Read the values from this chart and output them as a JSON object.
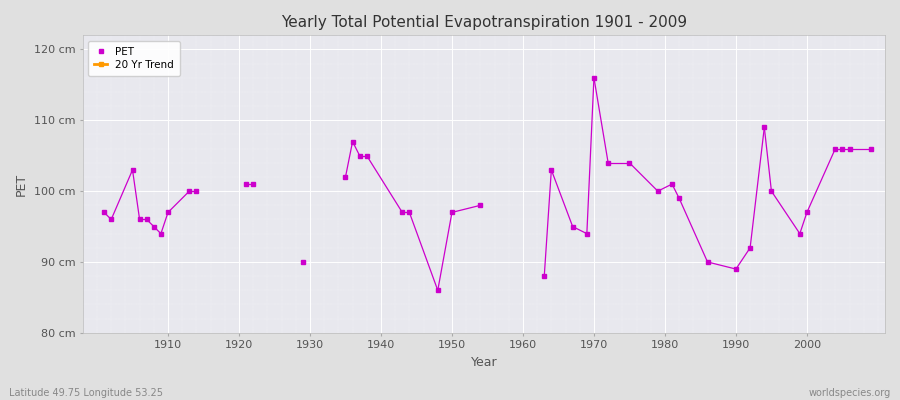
{
  "title": "Yearly Total Potential Evapotranspiration 1901 – 2009",
  "title_text": "Yearly Total Potential Evapotranspiration 1901 - 2009",
  "xlabel": "Year",
  "ylabel": "PET",
  "bottom_left_label": "Latitude 49.75 Longitude 53.25",
  "bottom_right_label": "worldspecies.org",
  "ylim": [
    80,
    122
  ],
  "xlim": [
    1898,
    2011
  ],
  "yticks": [
    80,
    90,
    100,
    110,
    120
  ],
  "ytick_labels": [
    "80 cm",
    "90 cm",
    "100 cm",
    "110 cm",
    "120 cm"
  ],
  "xticks": [
    1910,
    1920,
    1930,
    1940,
    1950,
    1960,
    1970,
    1980,
    1990,
    2000
  ],
  "pet_color": "#cc00cc",
  "trend_color": "#ff9900",
  "fig_bg_color": "#e0e0e0",
  "plot_bg_color": "#e8e8ee",
  "legend_labels": [
    "PET",
    "20 Yr Trend"
  ],
  "pet_data": {
    "years": [
      1901,
      1902,
      1905,
      1906,
      1907,
      1908,
      1909,
      1910,
      1913,
      1914,
      1921,
      1922,
      1929,
      1935,
      1936,
      1937,
      1938,
      1943,
      1944,
      1948,
      1950,
      1954,
      1963,
      1964,
      1967,
      1969,
      1970,
      1972,
      1975,
      1979,
      1981,
      1982,
      1986,
      1990,
      1992,
      1994,
      1995,
      1999,
      2000,
      2004,
      2005,
      2006,
      2009
    ],
    "values": [
      97,
      96,
      103,
      96,
      96,
      95,
      94,
      97,
      100,
      100,
      101,
      101,
      90,
      102,
      107,
      105,
      105,
      97,
      97,
      86,
      97,
      98,
      88,
      103,
      95,
      94,
      116,
      104,
      104,
      100,
      101,
      99,
      90,
      89,
      92,
      109,
      100,
      94,
      97,
      106,
      106,
      106,
      106
    ]
  }
}
